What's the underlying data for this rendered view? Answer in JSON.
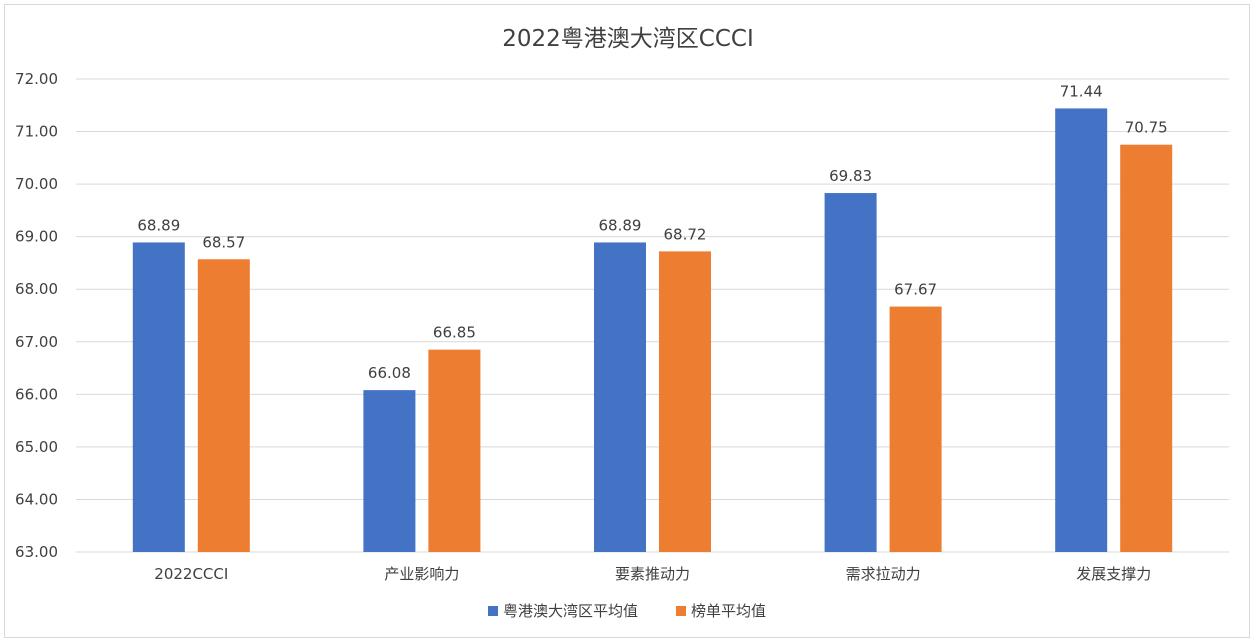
{
  "chart_data": {
    "type": "bar",
    "title": "2022粤港澳大湾区CCCI",
    "categories": [
      "2022CCCI",
      "产业影响力",
      "要素推动力",
      "需求拉动力",
      "发展支撑力"
    ],
    "series": [
      {
        "name": "粤港澳大湾区平均值",
        "values": [
          68.89,
          66.08,
          68.89,
          69.83,
          71.44
        ],
        "color": "#4472C4"
      },
      {
        "name": "榜单平均值",
        "values": [
          68.57,
          66.85,
          68.72,
          67.67,
          70.75
        ],
        "color": "#ED7D31"
      }
    ],
    "ylim": [
      63,
      72
    ],
    "yticks": [
      "63.00",
      "64.00",
      "65.00",
      "66.00",
      "67.00",
      "68.00",
      "69.00",
      "70.00",
      "71.00",
      "72.00"
    ],
    "grid": true,
    "legend_position": "bottom"
  }
}
